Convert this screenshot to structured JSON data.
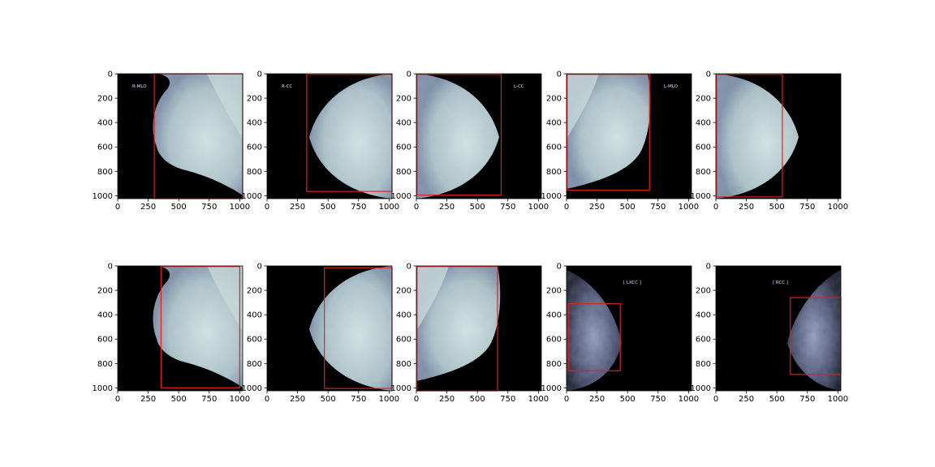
{
  "figure": {
    "background": "#ffffff",
    "image_background": "#000000",
    "tissue_color": "#b8cdd0",
    "box_color": "#dd2222",
    "label_color": "#cfe0ff"
  },
  "axes_common": {
    "xticks": [
      "0",
      "250",
      "500",
      "750",
      "1000"
    ],
    "yticks": [
      "0",
      "200",
      "400",
      "600",
      "800",
      "1000"
    ],
    "xlim": [
      0,
      1024
    ],
    "ylim": [
      1024,
      0
    ]
  },
  "panels": [
    {
      "id": "r1c1",
      "view": "mlo-right",
      "label": "R-MLO",
      "box": [
        300,
        0,
        1024,
        1024
      ]
    },
    {
      "id": "r1c2",
      "view": "cc-right",
      "label": "R-CC",
      "box": [
        325,
        5,
        1024,
        965
      ]
    },
    {
      "id": "r1c3",
      "view": "cc-left",
      "label": "L-CC",
      "box": [
        5,
        5,
        695,
        995
      ]
    },
    {
      "id": "r1c4",
      "view": "mlo-left",
      "label": "L-MLO",
      "box": [
        5,
        5,
        680,
        955
      ]
    },
    {
      "id": "r1c5",
      "view": "cc-left",
      "label": "",
      "box": [
        5,
        5,
        545,
        1010
      ]
    },
    {
      "id": "r2c1",
      "view": "mlo-right",
      "label": "",
      "box": [
        355,
        5,
        1000,
        1000
      ]
    },
    {
      "id": "r2c2",
      "view": "cc-right",
      "label": "",
      "box": [
        470,
        15,
        1024,
        1005
      ]
    },
    {
      "id": "r2c3",
      "view": "mlo-left",
      "label": "",
      "box": [
        5,
        5,
        665,
        1024
      ]
    },
    {
      "id": "r2c4",
      "view": "xray-left",
      "label": "[ LXCC ]",
      "box": [
        15,
        310,
        440,
        860
      ]
    },
    {
      "id": "r2c5",
      "view": "xray-right",
      "label": "[ RCC ]",
      "box": [
        610,
        260,
        1024,
        890
      ]
    }
  ]
}
